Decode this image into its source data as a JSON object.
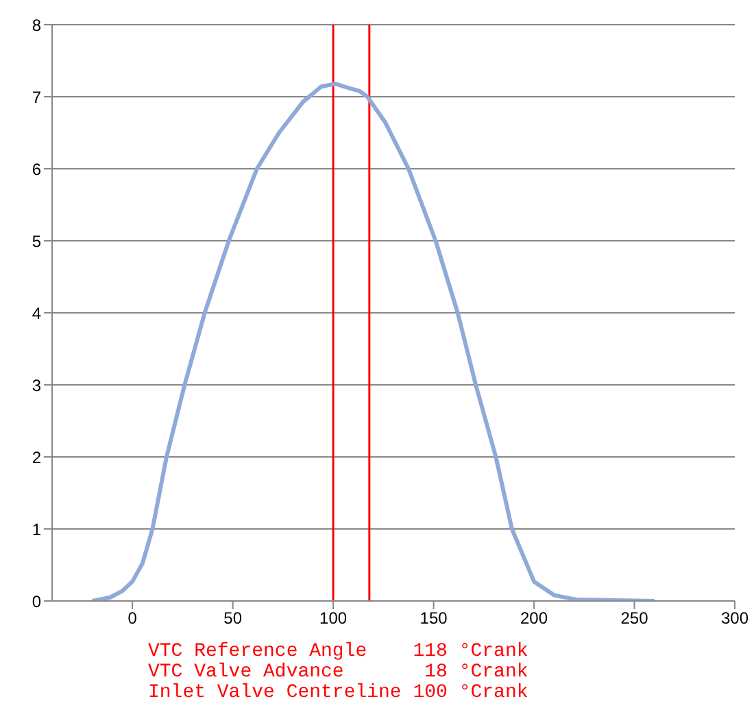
{
  "chart_data": {
    "type": "line",
    "x": [
      -20,
      -11,
      -5,
      0,
      5,
      10,
      17,
      26,
      36,
      48,
      62,
      73,
      85,
      94,
      101,
      109,
      113,
      117,
      126,
      137.5,
      151,
      162,
      171,
      181,
      189,
      200,
      210,
      221,
      260
    ],
    "series": [
      {
        "color": "#8eaad8",
        "values": [
          0,
          0.05,
          0.14,
          0.27,
          0.52,
          1,
          2,
          3,
          4,
          5,
          6,
          6.5,
          6.93,
          7.14,
          7.18,
          7.11,
          7.08,
          7,
          6.64,
          6,
          5,
          4,
          3,
          2,
          1,
          0.27,
          0.08,
          0.02,
          0
        ]
      }
    ],
    "xlim": [
      -40,
      300
    ],
    "xticks": [
      0,
      50,
      100,
      150,
      200,
      250,
      300
    ],
    "ylim": [
      0,
      8
    ],
    "yticks": [
      0,
      1,
      2,
      3,
      4,
      5,
      6,
      7,
      8
    ],
    "grid": "y",
    "marker": "none",
    "line_style": "solid",
    "ref_lines": [
      {
        "axis": "x",
        "value": 100,
        "color": "#ff0000"
      },
      {
        "axis": "x",
        "value": 118,
        "color": "#ff0000"
      }
    ],
    "annotations": [
      "VTC Reference Angle    118 °Crank",
      "VTC Valve Advance       18 °Crank",
      "Inlet Valve Centreline 100 °Crank"
    ]
  }
}
